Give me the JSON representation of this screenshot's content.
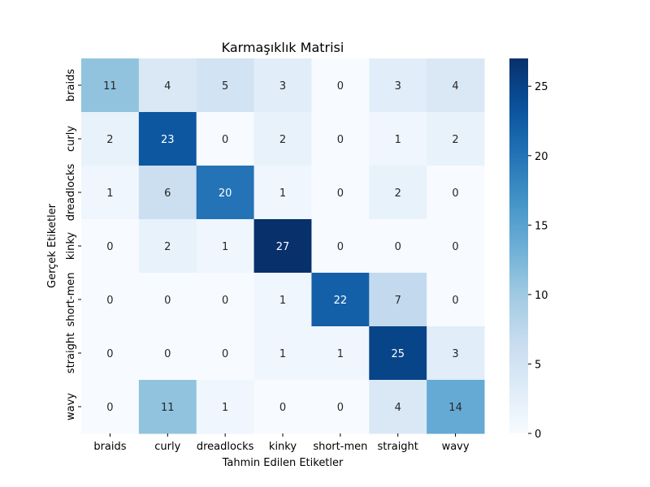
{
  "chart_data": {
    "type": "heatmap",
    "title": "Karmaşıklık Matrisi",
    "xlabel": "Tahmin Edilen Etiketler",
    "ylabel": "Gerçek Etiketler",
    "x_categories": [
      "braids",
      "curly",
      "dreadlocks",
      "kinky",
      "short-men",
      "straight",
      "wavy"
    ],
    "y_categories": [
      "braids",
      "curly",
      "dreadlocks",
      "kinky",
      "short-men",
      "straight",
      "wavy"
    ],
    "values": [
      [
        11,
        4,
        5,
        3,
        0,
        3,
        4
      ],
      [
        2,
        23,
        0,
        2,
        0,
        1,
        2
      ],
      [
        1,
        6,
        20,
        1,
        0,
        2,
        0
      ],
      [
        0,
        2,
        1,
        27,
        0,
        0,
        0
      ],
      [
        0,
        0,
        0,
        1,
        22,
        7,
        0
      ],
      [
        0,
        0,
        0,
        1,
        1,
        25,
        3
      ],
      [
        0,
        11,
        1,
        0,
        0,
        4,
        14
      ]
    ],
    "colormap": "Blues",
    "value_range": [
      0,
      27
    ],
    "colorbar_ticks": [
      0,
      5,
      10,
      15,
      20,
      25
    ]
  }
}
